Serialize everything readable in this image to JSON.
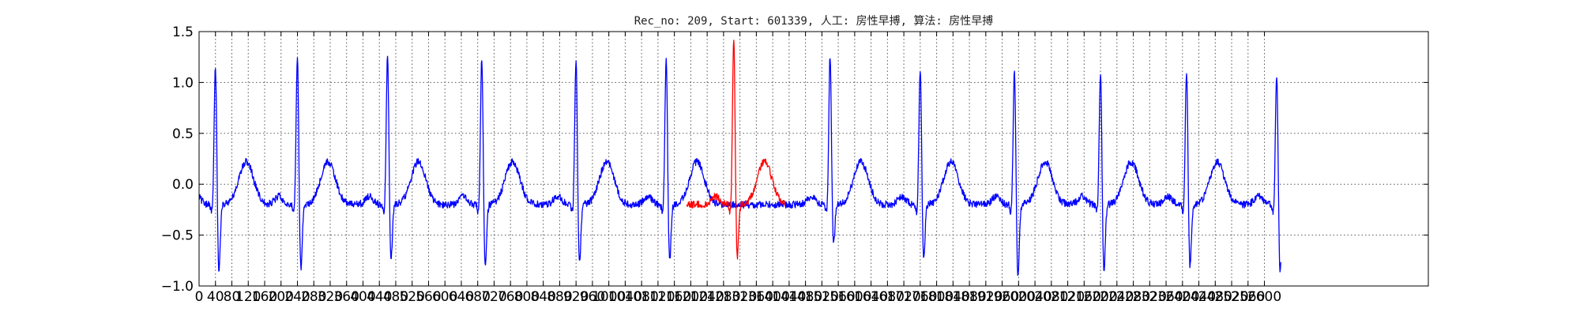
{
  "chart_data": {
    "type": "line",
    "title": "Rec_no: 209, Start: 601339, 人工: 房性早搏, 算法: 房性早搏",
    "xlabel": "",
    "ylabel": "",
    "xlim": [
      0,
      3000
    ],
    "ylim": [
      -1.0,
      1.5
    ],
    "grid": true,
    "y_ticks": [
      -1.0,
      -0.5,
      0.0,
      0.5,
      1.0,
      1.5
    ],
    "y_tick_labels": [
      "−1.0",
      "−0.5",
      "0.0",
      "0.5",
      "1.0",
      "1.5"
    ],
    "x_ticks": [
      0,
      40,
      80,
      120,
      160,
      200,
      240,
      280,
      320,
      360,
      400,
      440,
      480,
      520,
      560,
      600,
      640,
      680,
      720,
      760,
      800,
      840,
      880,
      920,
      960,
      1000,
      1040,
      1080,
      1120,
      1160,
      1200,
      1240,
      1280,
      1320,
      1360,
      1400,
      1440,
      1480,
      1520,
      1560,
      1600,
      1640,
      1680,
      1720,
      1760,
      1800,
      1840,
      1880,
      1920,
      1960,
      2000,
      2040,
      2080,
      2120,
      2160,
      2200,
      2240,
      2280,
      2320,
      2360,
      2400,
      2440,
      2480,
      2520,
      2560,
      2600
    ],
    "x_tick_labels": [
      "0",
      "40",
      "80",
      "120",
      "160",
      "200",
      "240",
      "280",
      "320",
      "360",
      "400",
      "440",
      "480",
      "520",
      "560",
      "600",
      "640",
      "680",
      "720",
      "760",
      "800",
      "840",
      "880",
      "920",
      "960",
      "1000",
      "1040",
      "1080",
      "1120",
      "1160",
      "1200",
      "1240",
      "1280",
      "1320",
      "1360",
      "1400",
      "1440",
      "1480",
      "1520",
      "1560",
      "1600",
      "1640",
      "1680",
      "1720",
      "1760",
      "1800",
      "1840",
      "1880",
      "1920",
      "1960",
      "2000",
      "2040",
      "2080",
      "2120",
      "2160",
      "2200",
      "2240",
      "2280",
      "2320",
      "2360",
      "2400",
      "2440",
      "2480",
      "2520",
      "2560",
      "2600"
    ],
    "series": [
      {
        "color": "#0000ff",
        "x_range": [
          0,
          2640
        ],
        "r_peaks": [
          {
            "x": 40,
            "peak": 1.15,
            "trough": -0.8
          },
          {
            "x": 240,
            "peak": 1.25,
            "trough": -0.78
          },
          {
            "x": 460,
            "peak": 1.25,
            "trough": -0.68
          },
          {
            "x": 690,
            "peak": 1.22,
            "trough": -0.78
          },
          {
            "x": 920,
            "peak": 1.2,
            "trough": -0.72
          },
          {
            "x": 1140,
            "peak": 1.2,
            "trough": -0.7
          },
          {
            "x": 1540,
            "peak": 1.24,
            "trough": -0.52
          },
          {
            "x": 1760,
            "peak": 1.13,
            "trough": -0.66
          },
          {
            "x": 1990,
            "peak": 1.12,
            "trough": -0.84
          },
          {
            "x": 2200,
            "peak": 1.1,
            "trough": -0.8
          },
          {
            "x": 2410,
            "peak": 1.1,
            "trough": -0.75
          },
          {
            "x": 2630,
            "peak": 1.06,
            "trough": -0.82
          }
        ]
      },
      {
        "color": "#ff0000",
        "x_range": [
          1190,
          1430
        ],
        "r_peaks": [
          {
            "x": 1305,
            "peak": 1.42,
            "trough": -0.66
          }
        ]
      }
    ]
  }
}
